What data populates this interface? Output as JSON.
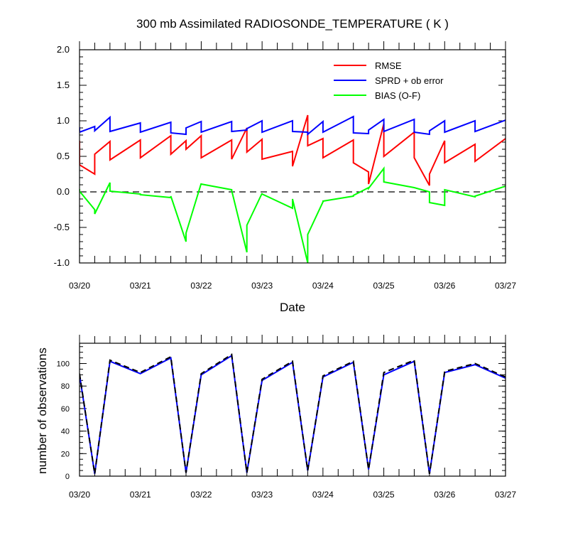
{
  "chart_data": [
    {
      "type": "line",
      "title": "300 mb Assimilated RADIOSONDE_TEMPERATURE ( K )",
      "xlabel": "Date",
      "ylabel": "",
      "xticks": [
        "03/20",
        "03/21",
        "03/22",
        "03/23",
        "03/24",
        "03/25",
        "03/26",
        "03/27"
      ],
      "xlim": [
        0,
        7
      ],
      "ylim": [
        -1.0,
        2.0
      ],
      "yticks": [
        -1.0,
        -0.5,
        0.0,
        0.5,
        1.0,
        1.5,
        2.0
      ],
      "ytick_labels": [
        "-1.0",
        "-0.5",
        "0.0",
        "0.5",
        "1.0",
        "1.5",
        "2.0"
      ],
      "zero_line": true,
      "legend_position": "top-right",
      "series": [
        {
          "name": "RMSE",
          "color": "#ff0000",
          "x": [
            0,
            0,
            0.25,
            0.25,
            0.5,
            0.5,
            1,
            1,
            1.5,
            1.5,
            1.75,
            1.75,
            2,
            2,
            2.5,
            2.5,
            2.75,
            2.75,
            3,
            3,
            3.5,
            3.5,
            3.75,
            3.75,
            4,
            4,
            4.5,
            4.5,
            4.75,
            4.75,
            5,
            5,
            5.5,
            5.5,
            5.75,
            5.75,
            6,
            6,
            6.5,
            6.5,
            7
          ],
          "y": [
            0.72,
            0.38,
            0.25,
            0.53,
            0.71,
            0.45,
            0.73,
            0.48,
            0.79,
            0.53,
            0.72,
            0.6,
            0.79,
            0.48,
            0.73,
            0.46,
            0.9,
            0.56,
            0.74,
            0.46,
            0.57,
            0.36,
            1.08,
            0.65,
            0.75,
            0.48,
            0.73,
            0.41,
            0.28,
            0.11,
            0.96,
            0.5,
            0.84,
            0.48,
            0.09,
            0.25,
            0.72,
            0.41,
            0.67,
            0.43,
            0.75
          ]
        },
        {
          "name": "SPRD + ob error",
          "color": "#0000ff",
          "x": [
            0,
            0,
            0.25,
            0.25,
            0.5,
            0.5,
            1,
            1,
            1.5,
            1.5,
            1.75,
            1.75,
            2,
            2,
            2.5,
            2.5,
            2.75,
            2.75,
            3,
            3,
            3.5,
            3.5,
            3.75,
            3.75,
            4,
            4,
            4.5,
            4.5,
            4.75,
            4.75,
            5,
            5,
            5.5,
            5.5,
            5.75,
            5.75,
            6,
            6,
            6.5,
            6.5,
            7
          ],
          "y": [
            0.91,
            0.84,
            0.92,
            0.86,
            1.05,
            0.85,
            0.97,
            0.84,
            0.98,
            0.83,
            0.81,
            0.9,
            0.99,
            0.84,
            0.99,
            0.85,
            0.87,
            0.89,
            1.0,
            0.84,
            1.0,
            0.85,
            0.84,
            0.81,
            0.99,
            0.84,
            1.06,
            0.83,
            0.82,
            0.87,
            1.02,
            0.85,
            1.02,
            0.84,
            0.81,
            0.86,
            1.0,
            0.84,
            1.0,
            0.85,
            1.01
          ]
        },
        {
          "name": "BIAS (O-F)",
          "color": "#00ff00",
          "x": [
            0,
            0,
            0.25,
            0.25,
            0.5,
            0.5,
            1,
            1,
            1.5,
            1.5,
            1.75,
            1.75,
            2,
            2,
            2.5,
            2.5,
            2.75,
            2.75,
            3,
            3,
            3.5,
            3.5,
            3.75,
            3.75,
            4,
            4,
            4.5,
            4.5,
            4.75,
            4.75,
            5,
            5,
            5.5,
            5.5,
            5.75,
            5.75,
            6,
            6,
            6.5,
            6.5,
            7
          ],
          "y": [
            0.04,
            0.01,
            -0.25,
            -0.31,
            0.13,
            0.01,
            -0.03,
            -0.04,
            -0.08,
            -0.06,
            -0.7,
            -0.58,
            0.12,
            0.11,
            0.03,
            0.02,
            -0.85,
            -0.47,
            -0.02,
            -0.03,
            -0.23,
            -0.1,
            -1.0,
            -0.6,
            -0.14,
            -0.13,
            -0.06,
            -0.05,
            0.06,
            0.05,
            0.33,
            0.14,
            0.06,
            0.06,
            0.0,
            -0.15,
            -0.19,
            0.03,
            -0.07,
            -0.06,
            0.08
          ]
        }
      ]
    },
    {
      "type": "line",
      "title": "",
      "xlabel": "",
      "ylabel": "number of observations",
      "xticks": [
        "03/20",
        "03/21",
        "03/22",
        "03/23",
        "03/24",
        "03/25",
        "03/26",
        "03/27"
      ],
      "xlim": [
        0,
        7
      ],
      "ylim": [
        0,
        118
      ],
      "yticks": [
        0,
        20,
        40,
        60,
        80,
        100
      ],
      "ytick_labels": [
        "0",
        "20",
        "40",
        "60",
        "80",
        "100"
      ],
      "series": [
        {
          "color": "#0000ff",
          "style": "solid",
          "x": [
            0,
            0.25,
            0.5,
            1,
            1.5,
            1.75,
            2,
            2.5,
            2.75,
            3,
            3.5,
            3.75,
            4,
            4.5,
            4.75,
            5,
            5.5,
            5.75,
            6,
            6.5,
            7
          ],
          "y": [
            90,
            2,
            102,
            91,
            105,
            3,
            90,
            107,
            3,
            85,
            101,
            5,
            88,
            101,
            6,
            90,
            102,
            2,
            92,
            99,
            87
          ]
        },
        {
          "color": "#000000",
          "style": "dashed",
          "x": [
            0,
            0.25,
            0.5,
            1,
            1.5,
            1.75,
            2,
            2.5,
            2.75,
            3,
            3.5,
            3.75,
            4,
            4.5,
            4.75,
            5,
            5.5,
            5.75,
            6,
            6.5,
            7
          ],
          "y": [
            91,
            2,
            103,
            92,
            106,
            3,
            91,
            108,
            3,
            86,
            102,
            5,
            89,
            102,
            6,
            92,
            103,
            2,
            93,
            100,
            88
          ]
        }
      ]
    }
  ]
}
